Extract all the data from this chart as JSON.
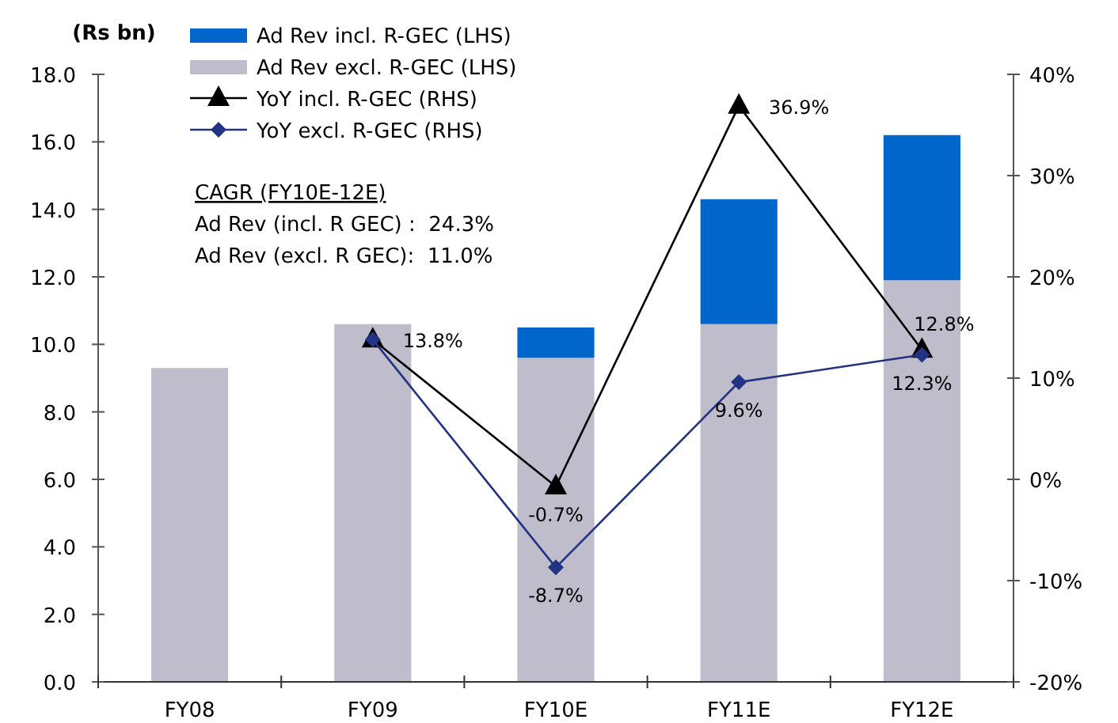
{
  "chart_data": {
    "type": "bar",
    "stacked": true,
    "ylabel": "(Rs bn)",
    "categories": [
      "FY08",
      "FY09",
      "FY10E",
      "FY11E",
      "FY12E"
    ],
    "series": [
      {
        "name": "Ad Rev excl. R-GEC (LHS)",
        "color": "#bfbccc",
        "values": [
          9.3,
          10.6,
          9.6,
          10.6,
          11.9
        ]
      },
      {
        "name": "Ad Rev incl. R-GEC (LHS)",
        "color": "#0066cc",
        "values": [
          0,
          0,
          0.9,
          3.7,
          4.3
        ]
      },
      {
        "name": "YoY incl. R-GEC (RHS)",
        "type": "line",
        "axis": "y2",
        "color": "#000000",
        "marker": "triangle",
        "values": [
          null,
          13.8,
          -0.7,
          36.9,
          12.8
        ],
        "value_labels": [
          null,
          null,
          "-0.7%",
          "36.9%",
          "12.8%"
        ]
      },
      {
        "name": "YoY excl. R-GEC (RHS)",
        "type": "line",
        "axis": "y2",
        "color": "#233383",
        "marker": "diamond",
        "values": [
          null,
          13.8,
          -8.7,
          9.6,
          12.3
        ],
        "value_labels": [
          null,
          "13.8%",
          "-8.7%",
          "9.6%",
          "12.3%"
        ]
      }
    ],
    "ylim": [
      0,
      18
    ],
    "yticks": [
      {
        "value": 0,
        "label": "0.0"
      },
      {
        "value": 2,
        "label": "2.0"
      },
      {
        "value": 4,
        "label": "4.0"
      },
      {
        "value": 6,
        "label": "6.0"
      },
      {
        "value": 8,
        "label": "8.0"
      },
      {
        "value": 10,
        "label": "10.0"
      },
      {
        "value": 12,
        "label": "12.0"
      },
      {
        "value": 14,
        "label": "14.0"
      },
      {
        "value": 16,
        "label": "16.0"
      },
      {
        "value": 18,
        "label": "18.0"
      }
    ],
    "y2lim": [
      -20,
      40
    ],
    "y2ticks": [
      {
        "value": -20,
        "label": "-20%"
      },
      {
        "value": -10,
        "label": "-10%"
      },
      {
        "value": 0,
        "label": "0%"
      },
      {
        "value": 10,
        "label": "10%"
      },
      {
        "value": 20,
        "label": "20%"
      },
      {
        "value": 30,
        "label": "30%"
      },
      {
        "value": 40,
        "label": "40%"
      }
    ],
    "legend": "top left",
    "grid": false,
    "annotations": [
      "CAGR (FY10E-12E)",
      "Ad Rev (incl. R GEC) :  24.3%",
      "Ad Rev (excl. R GEC):  11.0%"
    ]
  }
}
